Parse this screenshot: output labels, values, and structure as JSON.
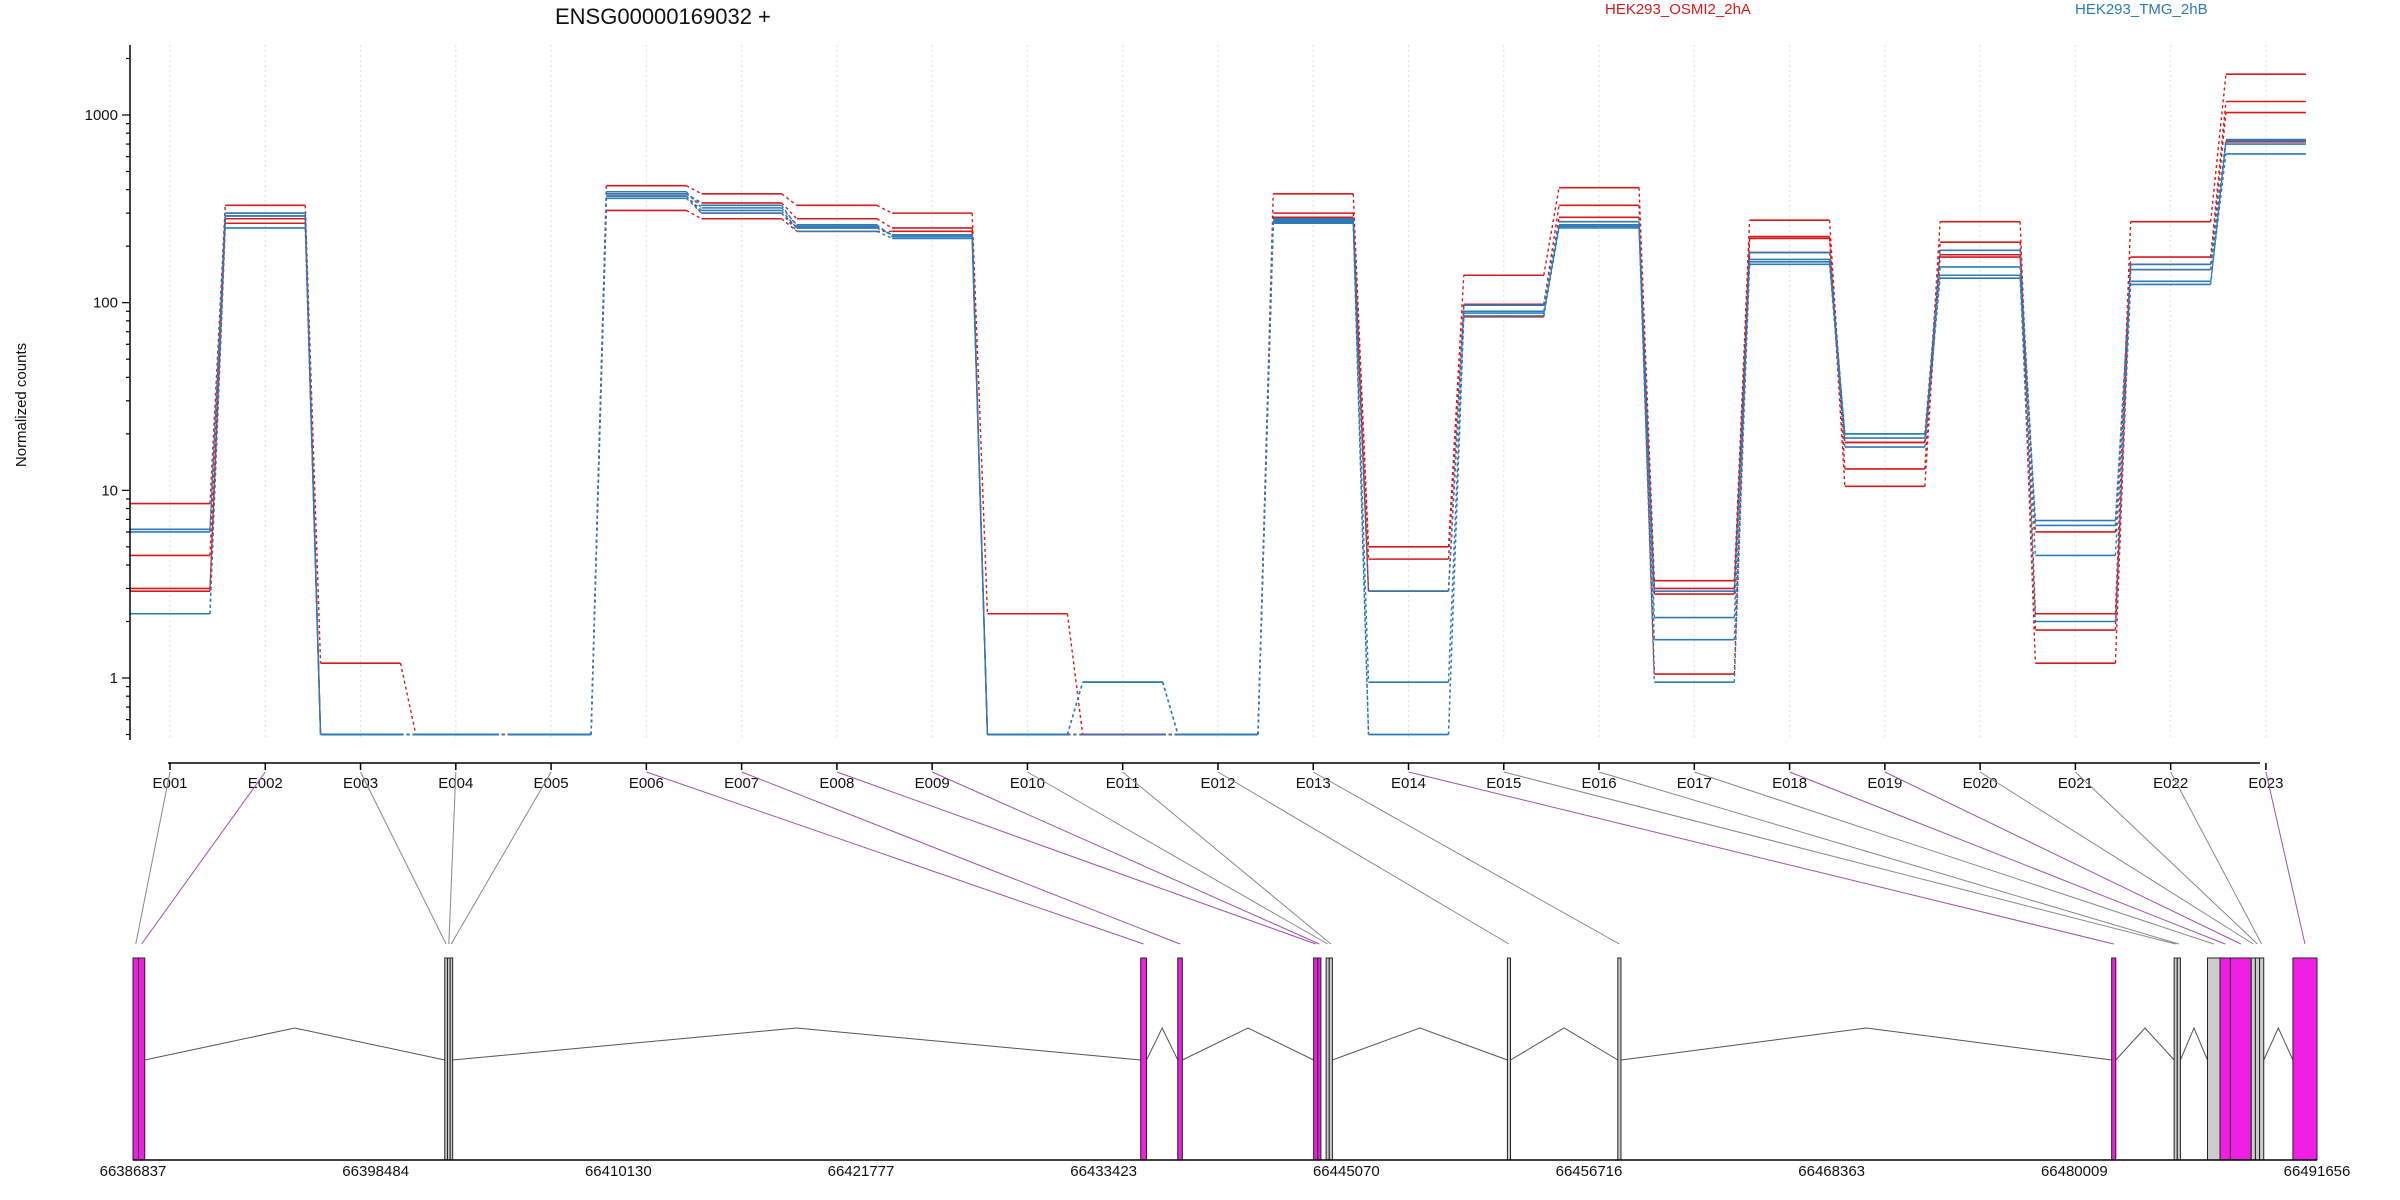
{
  "chart_data": {
    "type": "line",
    "title": "ENSG00000169032 +",
    "ylabel": "Normalized counts",
    "xlabel": "",
    "yscale": "log",
    "ylim": [
      0.5,
      2200
    ],
    "yticks": [
      1,
      10,
      100,
      1000
    ],
    "categories": [
      "E001",
      "E002",
      "E003",
      "E004",
      "E005",
      "E006",
      "E007",
      "E008",
      "E009",
      "E010",
      "E011",
      "E012",
      "E013",
      "E014",
      "E015",
      "E016",
      "E017",
      "E018",
      "E019",
      "E020",
      "E021",
      "E022",
      "E023"
    ],
    "grid": "vertical dotted",
    "legend": [
      {
        "name": "HEK293_OSMI2_2hA",
        "color": "#d7191c"
      },
      {
        "name": "HEK293_TMG_2hB",
        "color": "#2c7bb6"
      }
    ],
    "series": [
      {
        "group": "HEK293_OSMI2_2hA",
        "color": "#d7191c",
        "values": [
          8.5,
          330,
          1.2,
          0.5,
          0.5,
          420,
          380,
          330,
          300,
          2.2,
          0.5,
          0.5,
          380,
          5.0,
          140,
          410,
          3.3,
          275,
          13,
          270,
          2.2,
          270,
          1650
        ]
      },
      {
        "group": "HEK293_OSMI2_2hA",
        "color": "#d7191c",
        "values": [
          4.5,
          300,
          0.5,
          0.5,
          0.5,
          380,
          340,
          280,
          250,
          0.5,
          0.5,
          0.5,
          300,
          4.3,
          98,
          330,
          3.0,
          225,
          10.5,
          210,
          1.8,
          175,
          1180
        ]
      },
      {
        "group": "HEK293_OSMI2_2hA",
        "color": "#d7191c",
        "values": [
          3.0,
          280,
          0.5,
          0.5,
          0.5,
          310,
          280,
          240,
          240,
          0.5,
          0.5,
          0.5,
          285,
          2.9,
          84,
          285,
          1.05,
          220,
          18,
          180,
          1.2,
          160,
          1030
        ]
      },
      {
        "group": "HEK293_OSMI2_2hA",
        "color": "#d7191c",
        "values": [
          2.9,
          265,
          0.5,
          0.5,
          0.5,
          370,
          300,
          250,
          230,
          0.5,
          0.5,
          0.5,
          270,
          2.9,
          97,
          260,
          2.8,
          185,
          18,
          175,
          6.0,
          150,
          720
        ]
      },
      {
        "group": "HEK293_TMG_2hB",
        "color": "#2c7bb6",
        "values": [
          6.2,
          290,
          0.5,
          0.5,
          0.5,
          390,
          320,
          260,
          225,
          0.5,
          0.95,
          0.5,
          280,
          2.9,
          97,
          270,
          2.9,
          185,
          20,
          190,
          6.5,
          160,
          740
        ]
      },
      {
        "group": "HEK293_TMG_2hB",
        "color": "#2c7bb6",
        "values": [
          6.0,
          300,
          0.5,
          0.5,
          0.5,
          370,
          310,
          250,
          230,
          0.5,
          0.95,
          0.5,
          275,
          0.95,
          90,
          260,
          2.1,
          170,
          19,
          155,
          6.9,
          150,
          700
        ]
      },
      {
        "group": "HEK293_TMG_2hB",
        "color": "#2c7bb6",
        "values": [
          2.2,
          250,
          0.5,
          0.5,
          0.5,
          360,
          300,
          240,
          220,
          0.5,
          0.5,
          0.5,
          265,
          0.5,
          85,
          250,
          1.6,
          160,
          17,
          140,
          4.5,
          130,
          620
        ]
      },
      {
        "group": "HEK293_TMG_2hB",
        "color": "#2c7bb6",
        "values": [
          2.2,
          290,
          0.5,
          0.5,
          0.5,
          380,
          330,
          255,
          230,
          0.5,
          0.95,
          0.5,
          270,
          0.5,
          88,
          255,
          0.95,
          165,
          20,
          135,
          2.0,
          125,
          730
        ]
      }
    ],
    "gene_model": {
      "coordinate_ticks": [
        "66386837",
        "66398484",
        "66410130",
        "66421777",
        "66433423",
        "66445070",
        "66456716",
        "66468363",
        "66480009",
        "66491656"
      ],
      "range": [
        66386837,
        66491656
      ],
      "exons": [
        {
          "id": "E001",
          "start": 66386837,
          "end": 66387100,
          "fill": "#ee1fe3",
          "link": "#888888"
        },
        {
          "id": "E002",
          "start": 66387100,
          "end": 66387400,
          "fill": "#ee1fe3",
          "link": "#a050b0"
        },
        {
          "id": "E003",
          "start": 66401800,
          "end": 66401930,
          "fill": "#cccccc",
          "link": "#888888"
        },
        {
          "id": "E004",
          "start": 66401930,
          "end": 66402060,
          "fill": "#cccccc",
          "link": "#888888"
        },
        {
          "id": "E005",
          "start": 66402060,
          "end": 66402160,
          "fill": "#cccccc",
          "link": "#888888"
        },
        {
          "id": "E006",
          "start": 66435200,
          "end": 66435480,
          "fill": "#ee1fe3",
          "link": "#a050b0"
        },
        {
          "id": "E007",
          "start": 66436980,
          "end": 66437200,
          "fill": "#ee1fe3",
          "link": "#a050b0"
        },
        {
          "id": "E008",
          "start": 66443500,
          "end": 66443700,
          "fill": "#ee1fe3",
          "link": "#a050b0"
        },
        {
          "id": "E009",
          "start": 66443700,
          "end": 66443850,
          "fill": "#ee1fe3",
          "link": "#a050b0"
        },
        {
          "id": "E010",
          "start": 66444100,
          "end": 66444250,
          "fill": "#cccccc",
          "link": "#888888"
        },
        {
          "id": "E011",
          "start": 66444250,
          "end": 66444400,
          "fill": "#cccccc",
          "link": "#888888"
        },
        {
          "id": "E012",
          "start": 66452800,
          "end": 66452950,
          "fill": "#cccccc",
          "link": "#888888"
        },
        {
          "id": "E013",
          "start": 66458100,
          "end": 66458250,
          "fill": "#cccccc",
          "link": "#888888"
        },
        {
          "id": "E014",
          "start": 66481800,
          "end": 66482000,
          "fill": "#ee1fe3",
          "link": "#a050b0"
        },
        {
          "id": "E015",
          "start": 66484800,
          "end": 66484950,
          "fill": "#cccccc",
          "link": "#888888"
        },
        {
          "id": "E016",
          "start": 66484950,
          "end": 66485100,
          "fill": "#cccccc",
          "link": "#888888"
        },
        {
          "id": "E017",
          "start": 66486400,
          "end": 66487000,
          "fill": "#cccccc",
          "link": "#888888"
        },
        {
          "id": "E018",
          "start": 66487000,
          "end": 66487500,
          "fill": "#ee1fe3",
          "link": "#a050b0"
        },
        {
          "id": "E019",
          "start": 66487500,
          "end": 66488500,
          "fill": "#ee1fe3",
          "link": "#a050b0"
        },
        {
          "id": "E020",
          "start": 66488500,
          "end": 66488700,
          "fill": "#cccccc",
          "link": "#888888"
        },
        {
          "id": "E021",
          "start": 66488700,
          "end": 66488900,
          "fill": "#cccccc",
          "link": "#888888"
        },
        {
          "id": "E022",
          "start": 66488900,
          "end": 66489100,
          "fill": "#cccccc",
          "link": "#888888"
        },
        {
          "id": "E023",
          "start": 66490500,
          "end": 66491656,
          "fill": "#ee1fe3",
          "link": "#a050b0"
        }
      ]
    }
  }
}
